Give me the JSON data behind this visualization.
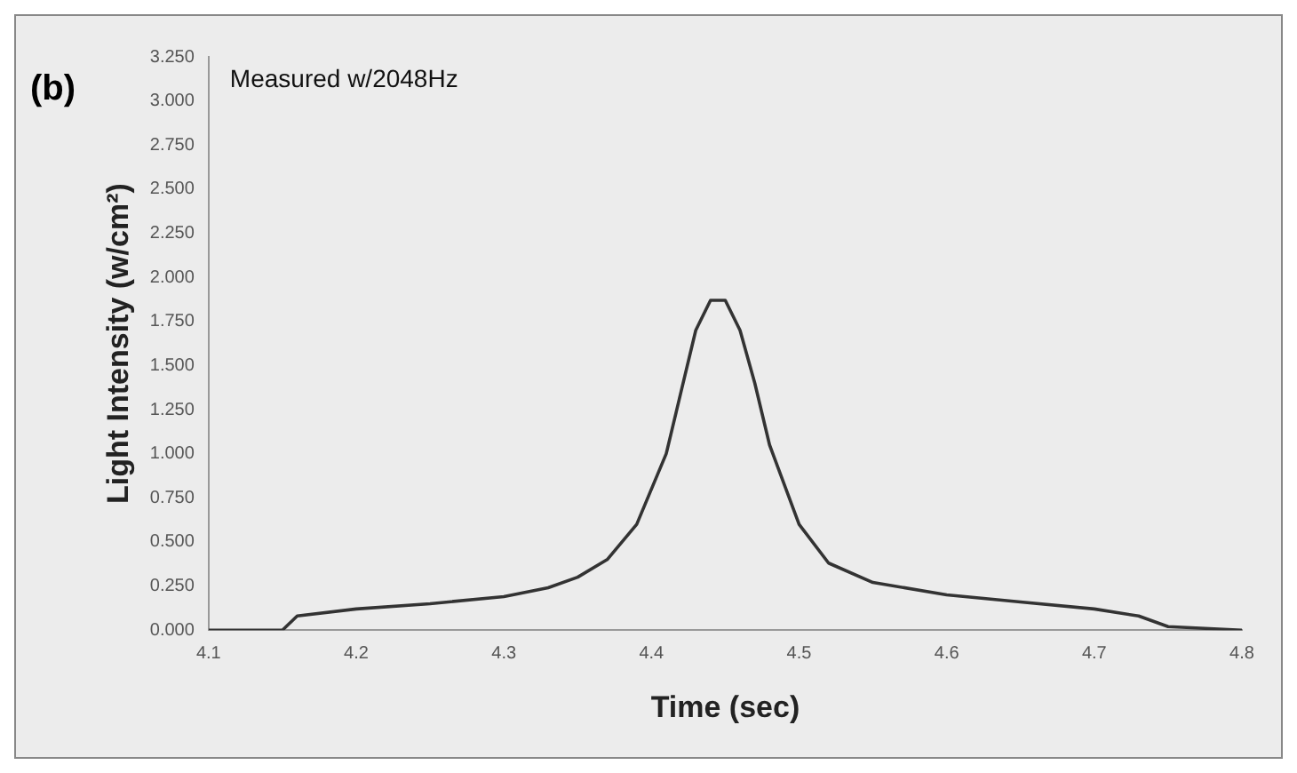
{
  "chart_data": {
    "type": "line",
    "xlabel": "Time (sec)",
    "ylabel": "Light Intensity (w/cm²)",
    "annotations": [
      "(b)",
      "Measured w/2048Hz"
    ],
    "x": [
      4.1,
      4.15,
      4.16,
      4.2,
      4.25,
      4.3,
      4.33,
      4.35,
      4.37,
      4.39,
      4.41,
      4.42,
      4.43,
      4.44,
      4.45,
      4.46,
      4.47,
      4.48,
      4.5,
      4.52,
      4.55,
      4.6,
      4.65,
      4.7,
      4.73,
      4.75,
      4.8
    ],
    "series": [
      {
        "color": "#333333",
        "values": [
          0,
          0,
          0.08,
          0.12,
          0.15,
          0.19,
          0.24,
          0.3,
          0.4,
          0.6,
          1.0,
          1.35,
          1.7,
          1.87,
          1.87,
          1.7,
          1.4,
          1.05,
          0.6,
          0.38,
          0.27,
          0.2,
          0.16,
          0.12,
          0.08,
          0.02,
          0
        ]
      }
    ],
    "xlim": [
      4.1,
      4.8
    ],
    "xticks": [
      4.1,
      4.2,
      4.3,
      4.4,
      4.5,
      4.6,
      4.7,
      4.8
    ],
    "ylim": [
      0,
      3.25
    ],
    "yticks": [
      {
        "value": 0,
        "label": "0.000"
      },
      {
        "value": 0.25,
        "label": "0.250"
      },
      {
        "value": 0.5,
        "label": "0.500"
      },
      {
        "value": 0.75,
        "label": "0.750"
      },
      {
        "value": 1,
        "label": "1.000"
      },
      {
        "value": 1.25,
        "label": "1.250"
      },
      {
        "value": 1.5,
        "label": "1.500"
      },
      {
        "value": 1.75,
        "label": "1.750"
      },
      {
        "value": 2,
        "label": "2.000"
      },
      {
        "value": 2.25,
        "label": "2.250"
      },
      {
        "value": 2.5,
        "label": "2.500"
      },
      {
        "value": 2.75,
        "label": "2.750"
      },
      {
        "value": 3,
        "label": "3.000"
      },
      {
        "value": 3.25,
        "label": "3.250"
      }
    ],
    "grid": false,
    "legend": false,
    "marker": "none",
    "line_style": "solid"
  }
}
